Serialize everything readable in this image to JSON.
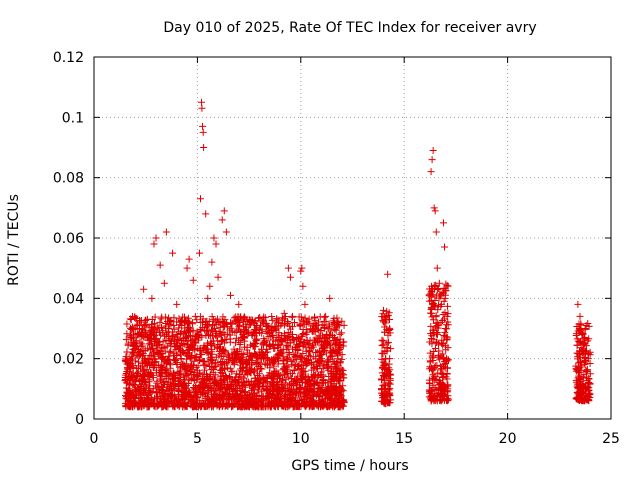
{
  "chart_data": {
    "type": "scatter",
    "title": "Day 010 of 2025, Rate Of TEC Index for receiver avry",
    "xlabel": "GPS time / hours",
    "ylabel": "ROTI / TECUs",
    "xlim": [
      0,
      25
    ],
    "ylim": [
      0,
      0.12
    ],
    "xticks": [
      0,
      5,
      10,
      15,
      20,
      25
    ],
    "xtick_labels": [
      "0",
      "5",
      "10",
      "15",
      "20",
      "25"
    ],
    "yticks": [
      0,
      0.02,
      0.04,
      0.06,
      0.08,
      0.1,
      0.12
    ],
    "ytick_labels": [
      "0",
      "0.02",
      "0.04",
      "0.06",
      "0.08",
      "0.1",
      "0.12"
    ],
    "grid": true,
    "marker": "+",
    "color": "#e00000",
    "series": [
      {
        "points": [
          [
            1.6,
            0.012
          ],
          [
            1.7,
            0.02
          ],
          [
            1.8,
            0.033
          ],
          [
            1.9,
            0.008
          ],
          [
            2.0,
            0.025
          ],
          [
            2.1,
            0.015
          ],
          [
            2.2,
            0.03
          ],
          [
            2.3,
            0.01
          ],
          [
            2.4,
            0.043
          ],
          [
            2.5,
            0.019
          ],
          [
            2.6,
            0.027
          ],
          [
            2.7,
            0.011
          ],
          [
            2.8,
            0.04
          ],
          [
            2.9,
            0.058
          ],
          [
            3.0,
            0.06
          ],
          [
            3.1,
            0.022
          ],
          [
            3.2,
            0.051
          ],
          [
            3.3,
            0.015
          ],
          [
            3.4,
            0.045
          ],
          [
            3.5,
            0.062
          ],
          [
            3.6,
            0.03
          ],
          [
            3.7,
            0.018
          ],
          [
            3.8,
            0.055
          ],
          [
            3.9,
            0.024
          ],
          [
            4.0,
            0.038
          ],
          [
            4.2,
            0.012
          ],
          [
            4.4,
            0.029
          ],
          [
            4.5,
            0.05
          ],
          [
            4.6,
            0.053
          ],
          [
            4.7,
            0.021
          ],
          [
            4.8,
            0.046
          ],
          [
            4.9,
            0.034
          ],
          [
            5.0,
            0.016
          ],
          [
            5.1,
            0.055
          ],
          [
            5.15,
            0.073
          ],
          [
            5.2,
            0.105
          ],
          [
            5.22,
            0.103
          ],
          [
            5.25,
            0.097
          ],
          [
            5.28,
            0.095
          ],
          [
            5.3,
            0.09
          ],
          [
            5.4,
            0.068
          ],
          [
            5.5,
            0.04
          ],
          [
            5.6,
            0.044
          ],
          [
            5.7,
            0.052
          ],
          [
            5.8,
            0.06
          ],
          [
            5.9,
            0.058
          ],
          [
            6.0,
            0.047
          ],
          [
            6.1,
            0.032
          ],
          [
            6.2,
            0.066
          ],
          [
            6.3,
            0.069
          ],
          [
            6.4,
            0.062
          ],
          [
            6.6,
            0.041
          ],
          [
            6.8,
            0.02
          ],
          [
            7.0,
            0.038
          ],
          [
            7.2,
            0.028
          ],
          [
            7.4,
            0.017
          ],
          [
            7.6,
            0.032
          ],
          [
            7.8,
            0.024
          ],
          [
            8.0,
            0.015
          ],
          [
            8.3,
            0.022
          ],
          [
            8.6,
            0.012
          ],
          [
            8.9,
            0.02
          ],
          [
            9.2,
            0.035
          ],
          [
            9.4,
            0.05
          ],
          [
            9.5,
            0.047
          ],
          [
            9.6,
            0.034
          ],
          [
            9.8,
            0.027
          ],
          [
            10.0,
            0.049
          ],
          [
            10.05,
            0.05
          ],
          [
            10.1,
            0.044
          ],
          [
            10.2,
            0.038
          ],
          [
            10.4,
            0.025
          ],
          [
            10.6,
            0.018
          ],
          [
            10.8,
            0.012
          ],
          [
            11.0,
            0.02
          ],
          [
            11.2,
            0.034
          ],
          [
            11.4,
            0.04
          ],
          [
            11.6,
            0.032
          ],
          [
            11.8,
            0.022
          ],
          [
            12.0,
            0.015
          ],
          [
            14.0,
            0.036
          ],
          [
            14.1,
            0.02
          ],
          [
            14.2,
            0.048
          ],
          [
            14.25,
            0.012
          ],
          [
            14.3,
            0.008
          ],
          [
            16.3,
            0.082
          ],
          [
            16.35,
            0.086
          ],
          [
            16.4,
            0.089
          ],
          [
            16.45,
            0.07
          ],
          [
            16.5,
            0.069
          ],
          [
            16.55,
            0.062
          ],
          [
            16.6,
            0.05
          ],
          [
            16.7,
            0.045
          ],
          [
            16.8,
            0.038
          ],
          [
            16.9,
            0.065
          ],
          [
            16.95,
            0.057
          ],
          [
            17.0,
            0.03
          ],
          [
            17.05,
            0.02
          ],
          [
            17.1,
            0.011
          ],
          [
            23.4,
            0.038
          ],
          [
            23.5,
            0.034
          ],
          [
            23.6,
            0.028
          ],
          [
            23.7,
            0.025
          ],
          [
            23.8,
            0.031
          ],
          [
            23.9,
            0.02
          ],
          [
            24.0,
            0.015
          ]
        ]
      }
    ],
    "dense_bands": [
      {
        "x": [
          1.5,
          12.1
        ],
        "y": [
          0.004,
          0.034
        ]
      },
      {
        "x": [
          13.9,
          14.35
        ],
        "y": [
          0.005,
          0.036
        ]
      },
      {
        "x": [
          16.2,
          17.15
        ],
        "y": [
          0.006,
          0.045
        ]
      },
      {
        "x": [
          23.3,
          24.0
        ],
        "y": [
          0.006,
          0.032
        ]
      }
    ]
  }
}
